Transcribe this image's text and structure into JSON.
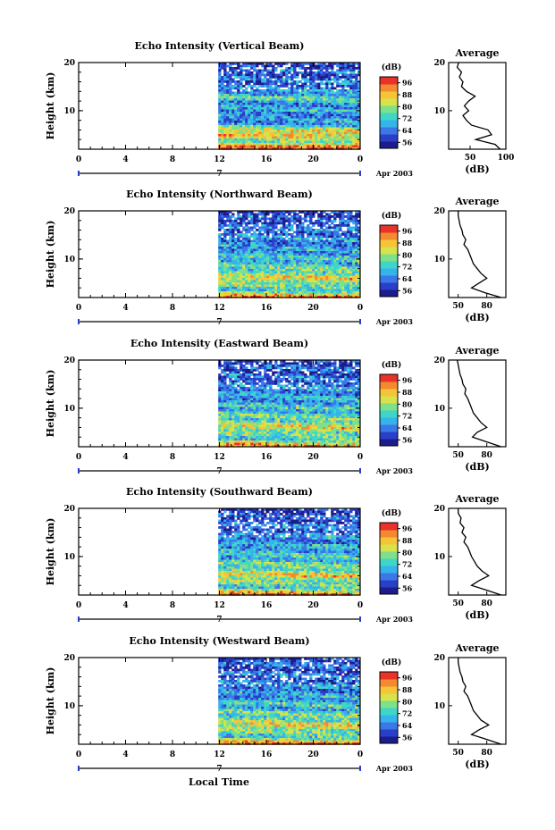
{
  "figure": {
    "x_axis_label": "Local Time",
    "date_label": "Apr 2003",
    "day_label": "7",
    "colorbar_unit": "(dB)",
    "average_title": "Average",
    "average_xlabel": "(dB)"
  },
  "colorbar": {
    "tick_labels": [
      "56",
      "64",
      "72",
      "80",
      "88",
      "96"
    ],
    "colors": [
      "#1c1c8c",
      "#2a3fc8",
      "#3a78e8",
      "#35b4ec",
      "#3fd6c8",
      "#7ee08a",
      "#d8e24a",
      "#f6c438",
      "#f48a30",
      "#e8322a"
    ]
  },
  "chart_data": [
    {
      "type": "heatmap",
      "title": "Echo Intensity (Vertical Beam)",
      "ylabel": "Height (km)",
      "x_ticks": [
        "0",
        "4",
        "8",
        "12",
        "16",
        "20",
        "0"
      ],
      "y_ticks": [
        "20",
        "10"
      ],
      "ylim": [
        2,
        20
      ],
      "data_start_hour": 11.9,
      "color_range_db": [
        56,
        96
      ],
      "average": {
        "title": "Average",
        "xlabel": "(dB)",
        "xlim": [
          20,
          100
        ],
        "x_ticks": [
          "50",
          "100"
        ],
        "y_ticks": [
          "20",
          "10"
        ],
        "height_km": [
          2,
          3,
          4,
          5,
          6,
          7,
          8,
          9,
          10,
          11,
          12,
          13,
          14,
          15,
          16,
          17,
          18,
          19,
          20
        ],
        "db": [
          92,
          85,
          58,
          80,
          75,
          52,
          45,
          40,
          48,
          42,
          48,
          57,
          45,
          38,
          40,
          35,
          38,
          32,
          34
        ]
      }
    },
    {
      "type": "heatmap",
      "title": "Echo Intensity (Northward Beam)",
      "ylabel": "Height (km)",
      "x_ticks": [
        "0",
        "4",
        "8",
        "12",
        "16",
        "20",
        "0"
      ],
      "y_ticks": [
        "20",
        "10"
      ],
      "ylim": [
        2,
        20
      ],
      "data_start_hour": 11.9,
      "color_range_db": [
        56,
        96
      ],
      "average": {
        "title": "Average",
        "xlabel": "(dB)",
        "xlim": [
          40,
          100
        ],
        "x_ticks": [
          "50",
          "80"
        ],
        "y_ticks": [
          "20",
          "10"
        ],
        "height_km": [
          2,
          3,
          4,
          5,
          6,
          7,
          8,
          9,
          10,
          11,
          12,
          13,
          14,
          15,
          16,
          17,
          18,
          19,
          20
        ],
        "db": [
          95,
          78,
          64,
          72,
          80,
          74,
          70,
          66,
          64,
          62,
          60,
          56,
          58,
          55,
          54,
          52,
          51,
          50,
          50
        ]
      }
    },
    {
      "type": "heatmap",
      "title": "Echo Intensity (Eastward Beam)",
      "ylabel": "Height (km)",
      "x_ticks": [
        "0",
        "4",
        "8",
        "12",
        "16",
        "20",
        "0"
      ],
      "y_ticks": [
        "20",
        "10"
      ],
      "ylim": [
        2,
        20
      ],
      "data_start_hour": 11.9,
      "color_range_db": [
        56,
        96
      ],
      "average": {
        "title": "Average",
        "xlabel": "(dB)",
        "xlim": [
          40,
          100
        ],
        "x_ticks": [
          "50",
          "80"
        ],
        "y_ticks": [
          "20",
          "10"
        ],
        "height_km": [
          2,
          3,
          4,
          5,
          6,
          7,
          8,
          9,
          10,
          11,
          12,
          13,
          14,
          15,
          16,
          17,
          18,
          19,
          20
        ],
        "db": [
          95,
          80,
          65,
          70,
          80,
          74,
          70,
          66,
          64,
          62,
          60,
          57,
          58,
          55,
          54,
          52,
          51,
          50,
          49
        ]
      }
    },
    {
      "type": "heatmap",
      "title": "Echo Intensity (Southward Beam)",
      "ylabel": "Height (km)",
      "x_ticks": [
        "0",
        "4",
        "8",
        "12",
        "16",
        "20",
        "0"
      ],
      "y_ticks": [
        "20",
        "10"
      ],
      "ylim": [
        2,
        20
      ],
      "data_start_hour": 11.9,
      "color_range_db": [
        56,
        96
      ],
      "average": {
        "title": "Average",
        "xlabel": "(dB)",
        "xlim": [
          40,
          100
        ],
        "x_ticks": [
          "50",
          "80"
        ],
        "y_ticks": [
          "20",
          "10"
        ],
        "height_km": [
          2,
          3,
          4,
          5,
          6,
          7,
          8,
          9,
          10,
          11,
          12,
          13,
          14,
          15,
          16,
          17,
          18,
          19,
          20
        ],
        "db": [
          95,
          80,
          64,
          72,
          82,
          75,
          70,
          67,
          64,
          62,
          60,
          56,
          58,
          54,
          56,
          52,
          53,
          50,
          50
        ]
      }
    },
    {
      "type": "heatmap",
      "title": "Echo Intensity (Westward Beam)",
      "ylabel": "Height (km)",
      "x_ticks": [
        "0",
        "4",
        "8",
        "12",
        "16",
        "20",
        "0"
      ],
      "y_ticks": [
        "20",
        "10"
      ],
      "ylim": [
        2,
        20
      ],
      "data_start_hour": 11.9,
      "color_range_db": [
        56,
        96
      ],
      "average": {
        "title": "Average",
        "xlabel": "(dB)",
        "xlim": [
          40,
          100
        ],
        "x_ticks": [
          "50",
          "80"
        ],
        "y_ticks": [
          "20",
          "10"
        ],
        "height_km": [
          2,
          3,
          4,
          5,
          6,
          7,
          8,
          9,
          10,
          11,
          12,
          13,
          14,
          15,
          16,
          17,
          18,
          19,
          20
        ],
        "db": [
          95,
          80,
          64,
          72,
          82,
          74,
          70,
          66,
          64,
          62,
          60,
          56,
          58,
          55,
          54,
          52,
          51,
          50,
          50
        ]
      }
    }
  ]
}
